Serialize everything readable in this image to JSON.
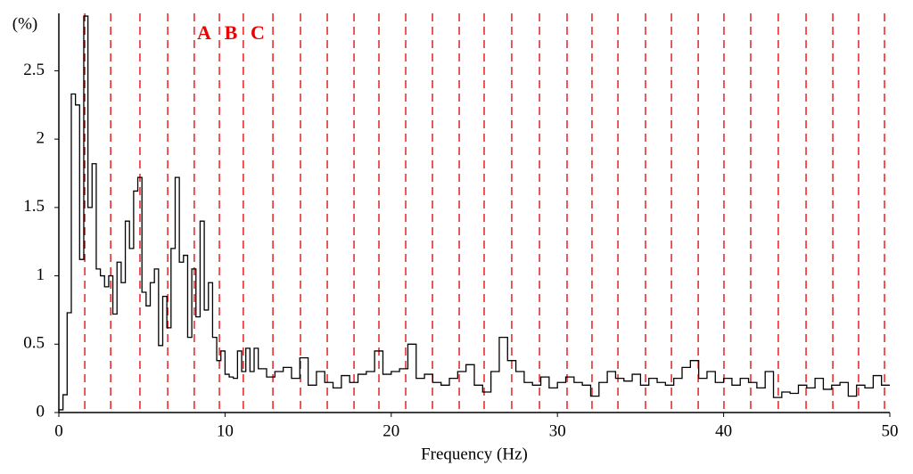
{
  "chart_data": {
    "type": "step",
    "y_label": "(%)",
    "x_label": "Frequency (Hz)",
    "annotations": [
      "A",
      "B",
      "C"
    ],
    "annotation_color": "#ee0000",
    "color": "#000000",
    "vline_color": "#e00000",
    "vlines": [
      1.56,
      3.12,
      4.88,
      6.55,
      8.15,
      9.66,
      11.1,
      12.88,
      14.54,
      16.15,
      17.76,
      19.26,
      20.87,
      22.48,
      24.09,
      25.59,
      27.25,
      28.92,
      30.58,
      32.08,
      33.64,
      35.3,
      36.86,
      38.47,
      40.02,
      41.63,
      43.29,
      44.96,
      46.57,
      48.12,
      49.68
    ],
    "x": [
      0,
      0.25,
      0.5,
      0.75,
      1,
      1.25,
      1.5,
      1.75,
      2,
      2.25,
      2.5,
      2.75,
      3,
      3.25,
      3.5,
      3.75,
      4,
      4.25,
      4.5,
      4.75,
      5,
      5.25,
      5.5,
      5.75,
      6,
      6.25,
      6.5,
      6.75,
      7,
      7.25,
      7.5,
      7.75,
      8,
      8.25,
      8.5,
      8.75,
      9,
      9.25,
      9.5,
      9.75,
      10,
      10.25,
      10.5,
      10.75,
      11,
      11.25,
      11.5,
      11.75,
      12,
      12.5,
      13,
      13.5,
      14,
      14.5,
      15,
      15.5,
      16,
      16.5,
      17,
      17.5,
      18,
      18.5,
      19,
      19.5,
      20,
      20.5,
      21,
      21.5,
      22,
      22.5,
      23,
      23.5,
      24,
      24.5,
      25,
      25.5,
      26,
      26.5,
      27,
      27.5,
      28,
      28.5,
      29,
      29.5,
      30,
      30.5,
      31,
      31.5,
      32,
      32.5,
      33,
      33.5,
      34,
      34.5,
      35,
      35.5,
      36,
      36.5,
      37,
      37.5,
      38,
      38.5,
      39,
      39.5,
      40,
      40.5,
      41,
      41.5,
      42,
      42.5,
      43,
      43.5,
      44,
      44.5,
      45,
      45.5,
      46,
      46.5,
      47,
      47.5,
      48,
      48.5,
      49,
      49.5
    ],
    "values": [
      0.02,
      0.13,
      0.73,
      2.33,
      2.25,
      1.12,
      2.9,
      1.5,
      1.82,
      1.05,
      1.0,
      0.92,
      1.0,
      0.72,
      1.1,
      0.95,
      1.4,
      1.2,
      1.62,
      1.72,
      0.88,
      0.78,
      0.95,
      1.05,
      0.49,
      0.85,
      0.62,
      1.2,
      1.72,
      1.1,
      1.15,
      0.55,
      1.05,
      0.7,
      1.4,
      0.75,
      0.95,
      0.55,
      0.38,
      0.45,
      0.28,
      0.26,
      0.25,
      0.45,
      0.3,
      0.47,
      0.3,
      0.47,
      0.32,
      0.26,
      0.3,
      0.33,
      0.25,
      0.4,
      0.2,
      0.3,
      0.22,
      0.18,
      0.27,
      0.22,
      0.28,
      0.3,
      0.45,
      0.28,
      0.3,
      0.32,
      0.5,
      0.25,
      0.28,
      0.22,
      0.2,
      0.25,
      0.3,
      0.35,
      0.2,
      0.15,
      0.3,
      0.55,
      0.38,
      0.3,
      0.22,
      0.2,
      0.26,
      0.18,
      0.22,
      0.26,
      0.22,
      0.2,
      0.12,
      0.22,
      0.3,
      0.25,
      0.23,
      0.28,
      0.2,
      0.25,
      0.22,
      0.2,
      0.25,
      0.33,
      0.38,
      0.25,
      0.3,
      0.22,
      0.25,
      0.2,
      0.25,
      0.22,
      0.18,
      0.3,
      0.11,
      0.15,
      0.14,
      0.2,
      0.18,
      0.25,
      0.17,
      0.2,
      0.22,
      0.12,
      0.2,
      0.18,
      0.27,
      0.2
    ],
    "xlim": [
      0,
      50
    ],
    "ylim": [
      0,
      2.92
    ],
    "xticks": [
      0,
      10,
      20,
      30,
      40,
      50
    ],
    "yticks": [
      0,
      0.5,
      1,
      1.5,
      2,
      2.5
    ]
  }
}
